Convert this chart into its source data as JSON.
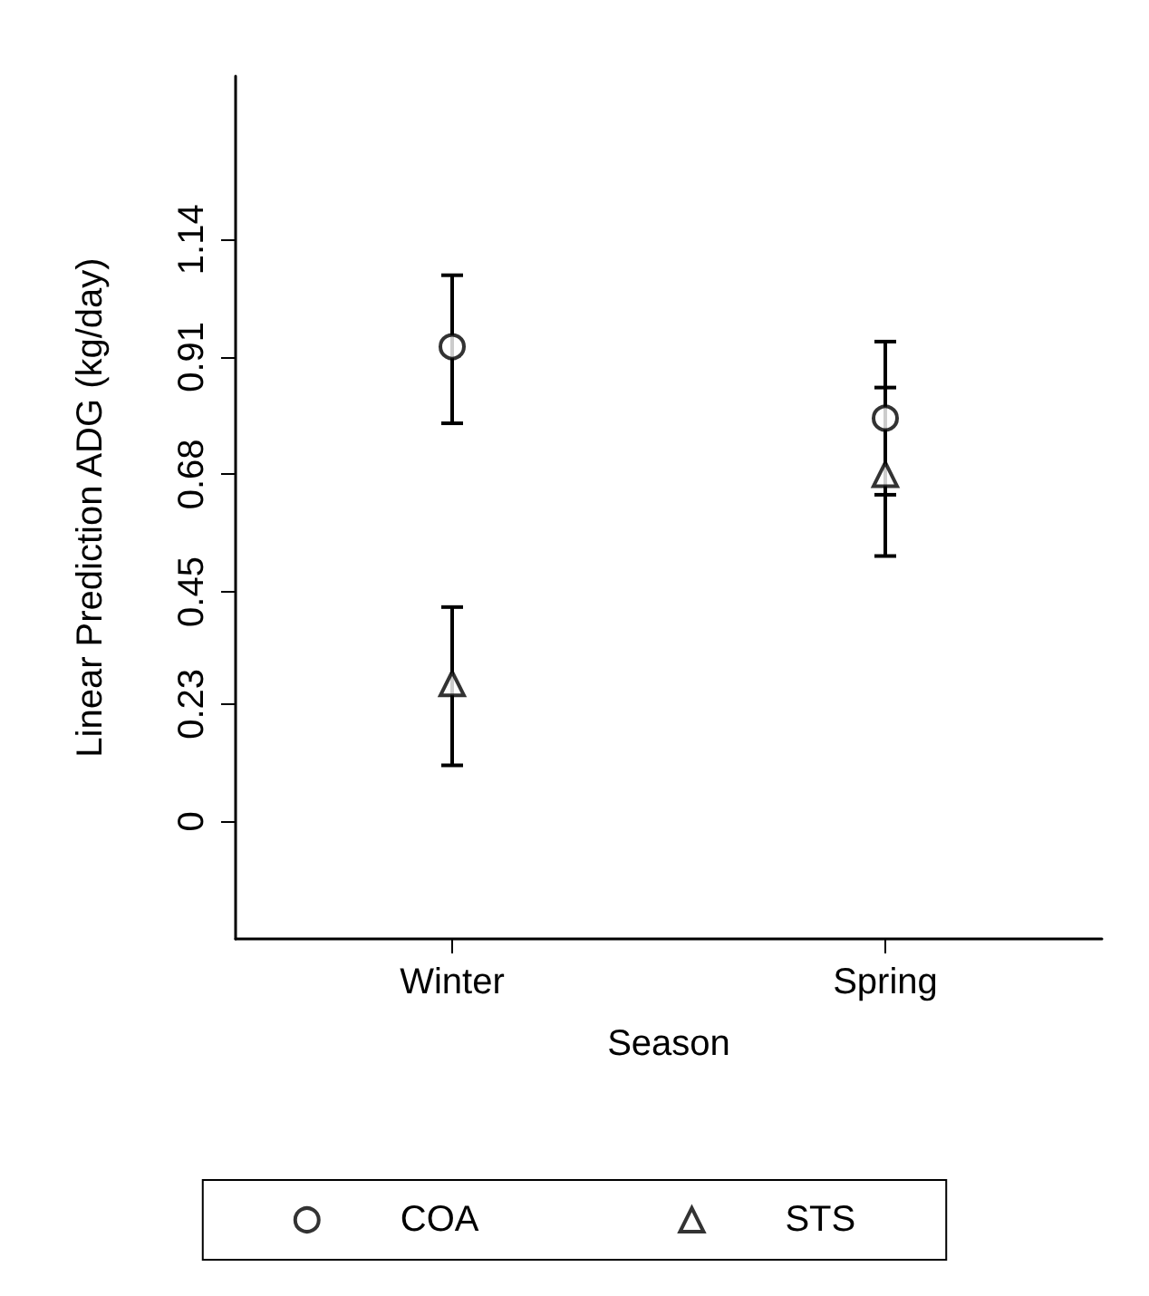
{
  "chart_data": {
    "type": "scatter",
    "xlabel": "Season",
    "ylabel": "Linear Prediction ADG (kg/day)",
    "categories": [
      "Winter",
      "Spring"
    ],
    "series": [
      {
        "name": "COA",
        "color": "#000000",
        "marker": "circle",
        "values": [
          0.93,
          0.79
        ],
        "errors": [
          [
            0.78,
            1.07
          ],
          [
            0.64,
            0.94
          ]
        ]
      },
      {
        "name": "STS",
        "color": "#000000",
        "marker": "triangle",
        "values": [
          0.27,
          0.68
        ],
        "errors": [
          [
            0.11,
            0.42
          ],
          [
            0.52,
            0.85
          ]
        ]
      }
    ],
    "ylim": [
      -0.23,
      1.46
    ],
    "yticks": [
      0,
      0.23,
      0.45,
      0.68,
      0.91,
      1.14
    ],
    "grid": false,
    "legend": "bottom"
  }
}
